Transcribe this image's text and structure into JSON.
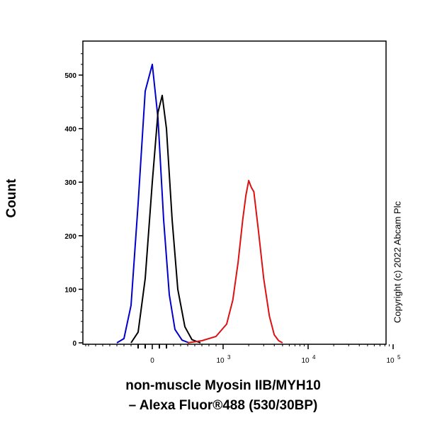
{
  "chart_data": {
    "type": "line",
    "title": "",
    "ylabel": "Count",
    "xlabel_lines": [
      "non-muscle Myosin IIB/MYH10",
      "– Alexa Fluor®488 (530/30BP)"
    ],
    "x_scale": "biexponential",
    "ylim": [
      0,
      560
    ],
    "y_ticks": [
      0,
      100,
      200,
      300,
      400,
      500
    ],
    "x_ticks": [
      {
        "base": "0",
        "exp": ""
      },
      {
        "base": "10",
        "exp": "3"
      },
      {
        "base": "10",
        "exp": "4"
      },
      {
        "base": "10",
        "exp": "5"
      }
    ],
    "series": [
      {
        "color": "#0000cc",
        "x": [
          -500,
          -400,
          -300,
          -200,
          -100,
          0,
          80,
          160,
          240,
          320,
          420,
          520
        ],
        "y": [
          0,
          8,
          70,
          260,
          470,
          520,
          420,
          230,
          90,
          25,
          5,
          0
        ]
      },
      {
        "color": "#000000",
        "x": [
          -300,
          -200,
          -100,
          0,
          80,
          140,
          200,
          280,
          360,
          460,
          560,
          680
        ],
        "y": [
          0,
          20,
          120,
          300,
          430,
          462,
          400,
          230,
          100,
          30,
          6,
          0
        ]
      },
      {
        "color": "#dd1111",
        "x": [
          500,
          700,
          900,
          1100,
          1300,
          1500,
          1700,
          1850,
          2000,
          2150,
          2300,
          2600,
          3000,
          3500,
          4000,
          4500,
          5000
        ],
        "y": [
          0,
          4,
          12,
          35,
          80,
          150,
          230,
          275,
          303,
          290,
          282,
          210,
          120,
          50,
          15,
          4,
          0
        ]
      }
    ]
  },
  "watermark": "Copyright (c) 2022 Abcam Plc"
}
